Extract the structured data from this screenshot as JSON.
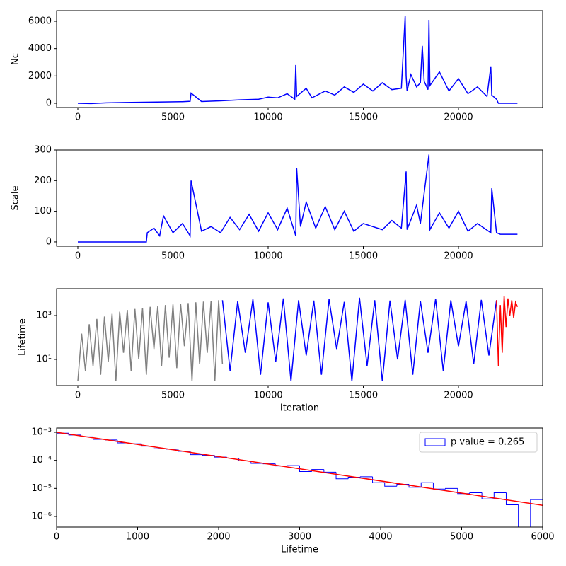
{
  "chart_data": [
    {
      "type": "line",
      "ylabel": "Nc",
      "xlim": [
        -1115,
        24424
      ],
      "ylim": [
        -310,
        6776
      ],
      "xticks": [
        0,
        5000,
        10000,
        15000,
        20000
      ],
      "yticks": [
        0,
        2000,
        4000,
        6000
      ],
      "grid": false,
      "series": [
        {
          "color": "#0000ff",
          "x": [
            0,
            700,
            1500,
            2500,
            3500,
            4500,
            5500,
            5900,
            5950,
            6500,
            7500,
            8500,
            9500,
            10000,
            10500,
            11000,
            11400,
            11450,
            11500,
            12000,
            12300,
            13000,
            13500,
            14000,
            14500,
            15000,
            15500,
            16000,
            16500,
            17000,
            17200,
            17250,
            17300,
            17500,
            17800,
            18000,
            18100,
            18200,
            18400,
            18450,
            18500,
            19000,
            19500,
            20000,
            20500,
            21000,
            21500,
            21700,
            21750,
            22000,
            22100,
            23100
          ],
          "values": [
            0,
            -20,
            30,
            60,
            80,
            100,
            120,
            150,
            750,
            130,
            180,
            250,
            300,
            450,
            400,
            700,
            300,
            2800,
            500,
            1100,
            400,
            900,
            600,
            1200,
            800,
            1400,
            900,
            1500,
            1000,
            1100,
            6400,
            2000,
            900,
            2100,
            1200,
            1500,
            4200,
            1600,
            1000,
            6100,
            1300,
            2300,
            900,
            1800,
            700,
            1200,
            500,
            2700,
            600,
            300,
            0,
            0
          ]
        }
      ]
    },
    {
      "type": "line",
      "ylabel": "Scale",
      "xlim": [
        -1115,
        24424
      ],
      "ylim": [
        -14,
        300
      ],
      "xticks": [
        0,
        5000,
        10000,
        15000,
        20000
      ],
      "yticks": [
        0,
        100,
        200,
        300
      ],
      "grid": false,
      "series": [
        {
          "color": "#0000ff",
          "x": [
            0,
            3600,
            3650,
            4000,
            4300,
            4500,
            5000,
            5500,
            5900,
            5950,
            6500,
            7000,
            7500,
            8000,
            8500,
            9000,
            9500,
            10000,
            10500,
            11000,
            11450,
            11500,
            11700,
            12000,
            12500,
            13000,
            13500,
            14000,
            14500,
            15000,
            16000,
            16500,
            17000,
            17250,
            17300,
            17800,
            18000,
            18450,
            18500,
            19000,
            19500,
            20000,
            20500,
            21000,
            21700,
            21750,
            22000,
            22200,
            23100
          ],
          "values": [
            0,
            0,
            30,
            45,
            20,
            85,
            30,
            60,
            20,
            200,
            35,
            50,
            30,
            80,
            40,
            90,
            35,
            95,
            40,
            110,
            20,
            240,
            50,
            130,
            45,
            115,
            40,
            100,
            35,
            60,
            40,
            70,
            45,
            230,
            40,
            120,
            60,
            285,
            40,
            95,
            45,
            100,
            35,
            60,
            30,
            175,
            30,
            25,
            25
          ]
        }
      ]
    },
    {
      "type": "line",
      "ylabel": "Lifetime",
      "xlabel": "Iteration",
      "yscale": "log",
      "xlim": [
        -1115,
        24424
      ],
      "ylim": [
        0.64,
        16800
      ],
      "xticks": [
        0,
        5000,
        10000,
        15000,
        20000
      ],
      "yticks": [
        {
          "value": 10,
          "label": "10¹"
        },
        {
          "value": 1000,
          "label": "10³"
        }
      ],
      "grid": false,
      "series": [
        {
          "color": "#808080",
          "x": [
            0,
            200,
            400,
            600,
            800,
            1000,
            1200,
            1400,
            1600,
            1800,
            2000,
            2200,
            2400,
            2600,
            2800,
            3000,
            3200,
            3400,
            3600,
            3800,
            4000,
            4200,
            4400,
            4600,
            4800,
            5000,
            5200,
            5400,
            5600,
            5800,
            6000,
            6200,
            6400,
            6600,
            6800,
            7000,
            7200,
            7400,
            7600
          ],
          "values": [
            1,
            150,
            3,
            400,
            5,
            700,
            2,
            900,
            8,
            1200,
            1,
            1500,
            20,
            1800,
            3,
            2000,
            10,
            2200,
            2,
            2500,
            30,
            2700,
            5,
            3000,
            12,
            3200,
            4,
            3500,
            40,
            3700,
            1,
            4000,
            6,
            4300,
            20,
            4500,
            1,
            5000,
            6
          ]
        },
        {
          "color": "#0000ff",
          "x": [
            7600,
            8000,
            8400,
            8800,
            9200,
            9600,
            10000,
            10400,
            10800,
            11200,
            11600,
            12000,
            12400,
            12800,
            13200,
            13600,
            14000,
            14400,
            14800,
            15200,
            15600,
            16000,
            16400,
            16800,
            17200,
            17600,
            18000,
            18400,
            18800,
            19200,
            19600,
            20000,
            20400,
            20800,
            21200,
            21600,
            22000
          ],
          "values": [
            5000,
            3,
            4500,
            20,
            5500,
            2,
            4000,
            8,
            6000,
            1,
            5000,
            15,
            4800,
            2,
            5500,
            30,
            4200,
            1,
            6500,
            5,
            5000,
            1,
            4800,
            10,
            5200,
            2,
            4600,
            20,
            5800,
            3,
            5000,
            40,
            4500,
            6,
            5200,
            15,
            5000
          ]
        },
        {
          "color": "#ff0000",
          "x": [
            22000,
            22100,
            22200,
            22300,
            22400,
            22500,
            22600,
            22700,
            22800,
            22900,
            23000,
            23100
          ],
          "values": [
            5000,
            5,
            3000,
            20,
            8000,
            300,
            6000,
            1000,
            5000,
            800,
            4000,
            2500
          ]
        }
      ]
    },
    {
      "type": "histogram",
      "xlabel": "Lifetime",
      "yscale": "log",
      "xlim": [
        0,
        6000
      ],
      "ylim": [
        4.19e-07,
        0.001416
      ],
      "xticks": [
        0,
        1000,
        2000,
        3000,
        4000,
        5000,
        6000
      ],
      "yticks": [
        {
          "value": 1e-06,
          "label": "10⁻⁶"
        },
        {
          "value": 1e-05,
          "label": "10⁻⁵"
        },
        {
          "value": 0.0001,
          "label": "10⁻⁴"
        },
        {
          "value": 0.001,
          "label": "10⁻³"
        }
      ],
      "grid": false,
      "legend": "upper right",
      "series": [
        {
          "name": "p value = 0.265",
          "color": "#0000ff",
          "bins": [
            0,
            150,
            300,
            450,
            600,
            750,
            900,
            1050,
            1200,
            1350,
            1500,
            1650,
            1800,
            1950,
            2100,
            2250,
            2400,
            2550,
            2700,
            2850,
            3000,
            3150,
            3300,
            3450,
            3600,
            3750,
            3900,
            4050,
            4200,
            4350,
            4500,
            4650,
            4800,
            4950,
            5100,
            5250,
            5400,
            5550,
            5700,
            5850,
            6000
          ],
          "values": [
            0.00093,
            0.0008,
            0.00069,
            0.00056,
            0.00053,
            0.00042,
            0.00039,
            0.00032,
            0.00026,
            0.00025,
            0.00021,
            0.00016,
            0.00015,
            0.00013,
            0.00012,
            9.5e-05,
            7.8e-05,
            7.5e-05,
            6.3e-05,
            6.5e-05,
            4e-05,
            4.7e-05,
            3.8e-05,
            2.2e-05,
            2.5e-05,
            2.6e-05,
            1.6e-05,
            1.2e-05,
            1.4e-05,
            1.1e-05,
            1.6e-05,
            9.5e-06,
            1e-05,
            6.5e-06,
            7e-06,
            4.2e-06,
            7e-06,
            2.6e-06,
            0,
            4e-06
          ]
        }
      ],
      "fit": {
        "color": "#ff0000",
        "x": [
          0,
          6000
        ],
        "values": [
          0.001,
          2.5e-06
        ]
      }
    }
  ]
}
